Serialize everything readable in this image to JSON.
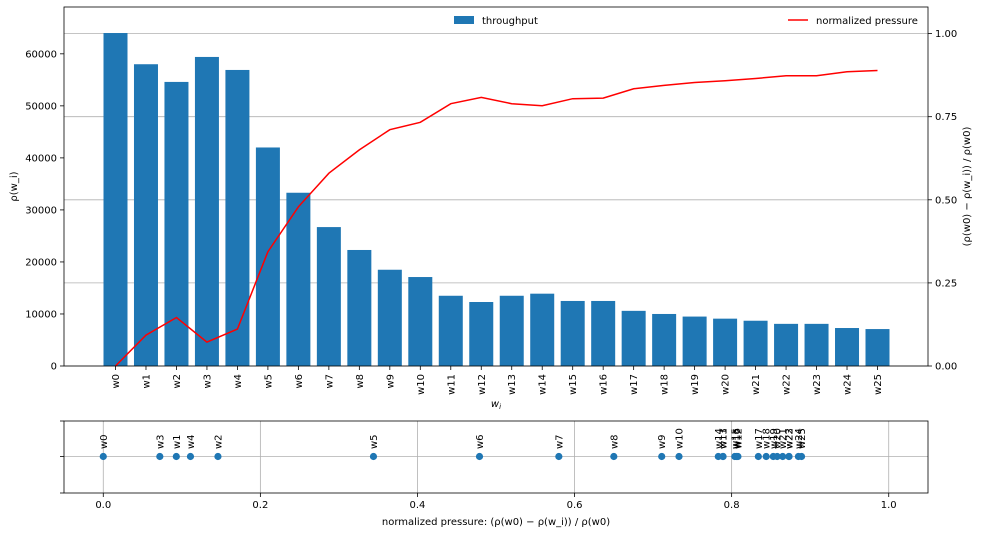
{
  "chart_data": [
    {
      "type": "bar+line",
      "categories": [
        "w0",
        "w1",
        "w2",
        "w3",
        "w4",
        "w5",
        "w6",
        "w7",
        "w8",
        "w9",
        "w10",
        "w11",
        "w12",
        "w13",
        "w14",
        "w15",
        "w16",
        "w17",
        "w18",
        "w19",
        "w20",
        "w21",
        "w22",
        "w23",
        "w24",
        "w25"
      ],
      "series": [
        {
          "name": "throughput",
          "type": "bar",
          "axis": "left",
          "values": [
            64000,
            58000,
            54600,
            59400,
            56900,
            42000,
            33300,
            26700,
            22300,
            18500,
            17100,
            13500,
            12300,
            13500,
            13900,
            12500,
            12500,
            10600,
            10000,
            9500,
            9100,
            8700,
            8100,
            8100,
            7300,
            7100
          ]
        },
        {
          "name": "normalized pressure",
          "type": "line",
          "axis": "right",
          "color": "#ff0000",
          "values": [
            0.0,
            0.093,
            0.146,
            0.072,
            0.111,
            0.344,
            0.479,
            0.58,
            0.65,
            0.711,
            0.733,
            0.789,
            0.808,
            0.789,
            0.783,
            0.804,
            0.806,
            0.834,
            0.844,
            0.853,
            0.858,
            0.865,
            0.873,
            0.873,
            0.885,
            0.889
          ]
        }
      ],
      "xlabel": "w_i",
      "ylabel": "ρ(w_i)",
      "ylabel_right": "(ρ(w0) − ρ(w_i)) / ρ(w0)",
      "ylim": [
        0,
        69000
      ],
      "ylim_right": [
        0,
        1.08
      ],
      "yticks": [
        "0",
        "10000",
        "20000",
        "30000",
        "40000",
        "50000",
        "60000"
      ],
      "yticks_right": [
        "0.00",
        "0.25",
        "0.50",
        "0.75",
        "1.00"
      ],
      "grid": "horizontal, right axis",
      "legend": [
        "throughput",
        "normalized pressure"
      ]
    },
    {
      "type": "scatter",
      "points": [
        {
          "label": "w0",
          "x": 0.0
        },
        {
          "label": "w1",
          "x": 0.093
        },
        {
          "label": "w2",
          "x": 0.146
        },
        {
          "label": "w3",
          "x": 0.072
        },
        {
          "label": "w4",
          "x": 0.111
        },
        {
          "label": "w5",
          "x": 0.344
        },
        {
          "label": "w6",
          "x": 0.479
        },
        {
          "label": "w7",
          "x": 0.58
        },
        {
          "label": "w8",
          "x": 0.65
        },
        {
          "label": "w9",
          "x": 0.711
        },
        {
          "label": "w10",
          "x": 0.733
        },
        {
          "label": "w11",
          "x": 0.789
        },
        {
          "label": "w12",
          "x": 0.808
        },
        {
          "label": "w13",
          "x": 0.789
        },
        {
          "label": "w14",
          "x": 0.783
        },
        {
          "label": "w15",
          "x": 0.804
        },
        {
          "label": "w16",
          "x": 0.806
        },
        {
          "label": "w17",
          "x": 0.834
        },
        {
          "label": "w18",
          "x": 0.844
        },
        {
          "label": "w19",
          "x": 0.853
        },
        {
          "label": "w20",
          "x": 0.858
        },
        {
          "label": "w21",
          "x": 0.865
        },
        {
          "label": "w22",
          "x": 0.873
        },
        {
          "label": "w23",
          "x": 0.873
        },
        {
          "label": "w24",
          "x": 0.885
        },
        {
          "label": "w25",
          "x": 0.889
        }
      ],
      "xlabel": "normalized pressure: (ρ(w0) − ρ(w_i)) / ρ(w0)",
      "xlim": [
        -0.05,
        1.05
      ],
      "xticks": [
        "0.0",
        "0.2",
        "0.4",
        "0.6",
        "0.8",
        "1.0"
      ],
      "grid": "on",
      "color": "#1f77b4"
    }
  ],
  "colors": {
    "bar": "#1f77b4",
    "line": "#ff0000",
    "grid": "#b0b0b0"
  }
}
